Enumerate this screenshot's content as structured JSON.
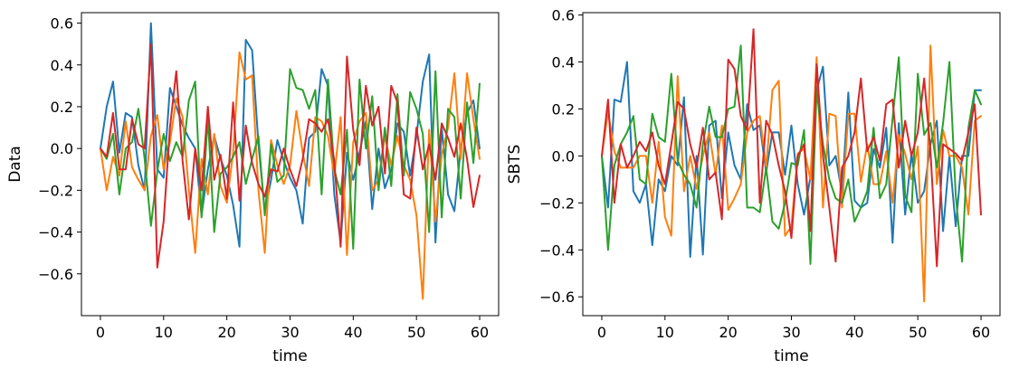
{
  "chart_data": [
    {
      "type": "line",
      "xlabel": "time",
      "ylabel": "Data",
      "xlim": [
        -3,
        63
      ],
      "ylim": [
        -0.8,
        0.65
      ],
      "xticks": [
        0,
        10,
        20,
        30,
        40,
        50,
        60
      ],
      "xtick_labels": [
        "0",
        "10",
        "20",
        "30",
        "40",
        "50",
        "60"
      ],
      "yticks": [
        -0.6,
        -0.4,
        -0.2,
        0.0,
        0.2,
        0.4,
        0.6
      ],
      "ytick_labels": [
        "−0.6",
        "−0.4",
        "−0.2",
        "0.0",
        "0.2",
        "0.4",
        "0.6"
      ],
      "grid": false,
      "x": [
        0,
        1,
        2,
        3,
        4,
        5,
        6,
        7,
        8,
        9,
        10,
        11,
        12,
        13,
        14,
        15,
        16,
        17,
        18,
        19,
        20,
        21,
        22,
        23,
        24,
        25,
        26,
        27,
        28,
        29,
        30,
        31,
        32,
        33,
        34,
        35,
        36,
        37,
        38,
        39,
        40,
        41,
        42,
        43,
        44,
        45,
        46,
        47,
        48,
        49,
        50,
        51,
        52,
        53,
        54,
        55,
        56,
        57,
        58,
        59,
        60
      ],
      "series": [
        {
          "color": "#1f77b4",
          "values": [
            0.0,
            0.2,
            0.32,
            -0.02,
            0.17,
            0.15,
            -0.08,
            -0.2,
            0.6,
            -0.1,
            -0.14,
            0.29,
            0.2,
            0.11,
            0.05,
            0.0,
            -0.32,
            -0.1,
            0.06,
            -0.05,
            -0.13,
            -0.27,
            -0.47,
            0.52,
            0.47,
            0.02,
            -0.3,
            -0.15,
            0.04,
            -0.06,
            -0.14,
            -0.2,
            -0.36,
            0.05,
            0.08,
            0.38,
            0.3,
            -0.22,
            -0.45,
            -0.02,
            -0.15,
            -0.02,
            0.13,
            -0.29,
            0.0,
            -0.19,
            -0.1,
            0.12,
            0.08,
            -0.13,
            0.06,
            0.32,
            0.45,
            -0.45,
            0.1,
            -0.22,
            -0.3,
            0.0,
            0.17,
            0.23,
            0.0
          ]
        },
        {
          "color": "#ff7f0e",
          "values": [
            0.0,
            -0.2,
            -0.04,
            -0.13,
            0.13,
            -0.09,
            -0.15,
            -0.2,
            0.06,
            0.16,
            -0.1,
            0.03,
            0.24,
            0.15,
            -0.2,
            -0.5,
            -0.05,
            -0.22,
            0.07,
            -0.18,
            -0.26,
            -0.02,
            0.46,
            0.33,
            0.35,
            -0.2,
            -0.5,
            0.04,
            -0.08,
            -0.17,
            -0.08,
            0.18,
            -0.02,
            -0.18,
            0.15,
            0.13,
            0.06,
            -0.13,
            0.15,
            -0.51,
            0.03,
            0.13,
            0.17,
            -0.2,
            -0.15,
            0.06,
            -0.08,
            0.06,
            -0.08,
            -0.15,
            -0.32,
            -0.72,
            0.09,
            -0.35,
            -0.03,
            0.1,
            0.36,
            -0.05,
            0.36,
            0.14,
            -0.05
          ]
        },
        {
          "color": "#2ca02c",
          "values": [
            0.0,
            -0.05,
            0.07,
            -0.22,
            0.0,
            0.03,
            0.19,
            -0.05,
            -0.37,
            -0.11,
            0.07,
            -0.06,
            0.03,
            -0.04,
            0.23,
            0.32,
            -0.33,
            0.15,
            -0.4,
            -0.12,
            -0.09,
            -0.04,
            0.03,
            -0.17,
            -0.05,
            0.06,
            -0.32,
            0.02,
            -0.16,
            -0.13,
            0.38,
            0.29,
            0.28,
            0.19,
            0.28,
            -0.22,
            0.33,
            -0.1,
            -0.22,
            0.09,
            -0.48,
            0.33,
            0.0,
            0.25,
            -0.2,
            0.1,
            -0.18,
            0.26,
            -0.13,
            0.27,
            0.19,
            0.07,
            -0.4,
            0.37,
            -0.33,
            0.19,
            0.15,
            -0.24,
            0.22,
            -0.07,
            0.31
          ]
        },
        {
          "color": "#d62728",
          "values": [
            0.0,
            -0.04,
            0.17,
            -0.1,
            -0.1,
            0.14,
            0.02,
            0.0,
            0.5,
            -0.57,
            -0.35,
            0.1,
            0.37,
            -0.06,
            -0.34,
            0.0,
            -0.2,
            0.2,
            -0.15,
            -0.03,
            -0.24,
            0.22,
            -0.25,
            0.11,
            -0.07,
            -0.17,
            -0.23,
            -0.1,
            -0.11,
            0.0,
            -0.1,
            -0.18,
            -0.05,
            0.14,
            0.12,
            0.08,
            0.14,
            -0.06,
            -0.47,
            0.44,
            0.09,
            -0.08,
            0.3,
            0.11,
            0.2,
            -0.12,
            0.3,
            0.22,
            -0.22,
            -0.24,
            0.1,
            -0.1,
            0.02,
            -0.15,
            0.12,
            0.05,
            -0.04,
            0.12,
            -0.05,
            -0.28,
            -0.13
          ]
        }
      ]
    },
    {
      "type": "line",
      "xlabel": "time",
      "ylabel": "SBTS",
      "xlim": [
        -3,
        63
      ],
      "ylim": [
        -0.68,
        0.61
      ],
      "xticks": [
        0,
        10,
        20,
        30,
        40,
        50,
        60
      ],
      "xtick_labels": [
        "0",
        "10",
        "20",
        "30",
        "40",
        "50",
        "60"
      ],
      "yticks": [
        -0.6,
        -0.4,
        -0.2,
        0.0,
        0.2,
        0.4,
        0.6
      ],
      "ytick_labels": [
        "−0.6",
        "−0.4",
        "−0.2",
        "0.0",
        "0.2",
        "0.4",
        "0.6"
      ],
      "grid": false,
      "x": [
        0,
        1,
        2,
        3,
        4,
        5,
        6,
        7,
        8,
        9,
        10,
        11,
        12,
        13,
        14,
        15,
        16,
        17,
        18,
        19,
        20,
        21,
        22,
        23,
        24,
        25,
        26,
        27,
        28,
        29,
        30,
        31,
        32,
        33,
        34,
        35,
        36,
        37,
        38,
        39,
        40,
        41,
        42,
        43,
        44,
        45,
        46,
        47,
        48,
        49,
        50,
        51,
        52,
        53,
        54,
        55,
        56,
        57,
        58,
        59,
        60
      ],
      "series": [
        {
          "color": "#1f77b4",
          "values": [
            0.0,
            -0.22,
            0.24,
            0.23,
            0.4,
            -0.15,
            -0.2,
            -0.12,
            -0.38,
            -0.1,
            -0.15,
            0.0,
            -0.04,
            0.25,
            -0.43,
            0.0,
            -0.42,
            0.13,
            0.15,
            -0.18,
            0.1,
            -0.04,
            -0.1,
            0.22,
            0.11,
            0.13,
            -0.07,
            0.1,
            0.1,
            -0.08,
            0.13,
            -0.12,
            -0.25,
            -0.09,
            0.28,
            0.38,
            -0.04,
            0.0,
            -0.16,
            0.27,
            -0.19,
            -0.22,
            -0.2,
            0.03,
            -0.05,
            0.12,
            -0.37,
            0.14,
            -0.25,
            0.01,
            -0.2,
            -0.15,
            0.05,
            0.15,
            -0.32,
            0.0,
            -0.3,
            0.0,
            0.0,
            0.28,
            0.28
          ]
        },
        {
          "color": "#ff7f0e",
          "values": [
            0.0,
            0.19,
            0.02,
            -0.05,
            -0.05,
            -0.05,
            0.0,
            0.0,
            -0.2,
            0.06,
            -0.26,
            -0.34,
            0.34,
            -0.15,
            0.0,
            -0.14,
            0.0,
            0.1,
            -0.08,
            0.13,
            -0.23,
            -0.18,
            -0.12,
            0.1,
            0.15,
            0.17,
            -0.05,
            0.28,
            0.32,
            -0.34,
            -0.3,
            0.01,
            0.03,
            -0.1,
            0.42,
            -0.22,
            0.18,
            0.17,
            -0.22,
            0.18,
            0.18,
            -0.11,
            0.05,
            -0.12,
            -0.12,
            0.02,
            -0.2,
            0.09,
            0.01,
            -0.1,
            0.04,
            -0.62,
            0.47,
            -0.12,
            0.11,
            0.0,
            0.0,
            -0.05,
            -0.25,
            0.15,
            0.17
          ]
        },
        {
          "color": "#2ca02c",
          "values": [
            0.0,
            -0.4,
            -0.04,
            0.05,
            0.1,
            0.17,
            -0.1,
            -0.12,
            0.18,
            0.08,
            0.06,
            0.35,
            -0.02,
            -0.08,
            -0.12,
            -0.22,
            0.05,
            0.21,
            0.08,
            0.08,
            0.2,
            0.21,
            0.47,
            -0.22,
            -0.22,
            -0.24,
            -0.05,
            -0.28,
            -0.31,
            -0.2,
            -0.03,
            -0.04,
            0.11,
            -0.46,
            0.28,
            0.05,
            -0.1,
            -0.18,
            -0.2,
            -0.1,
            -0.28,
            -0.22,
            -0.15,
            0.12,
            -0.18,
            -0.12,
            0.16,
            0.42,
            -0.17,
            -0.24,
            0.35,
            0.09,
            0.14,
            -0.05,
            0.14,
            0.4,
            -0.17,
            -0.45,
            0.12,
            0.28,
            0.22
          ]
        },
        {
          "color": "#d62728",
          "values": [
            0.0,
            0.24,
            -0.2,
            0.05,
            -0.05,
            0.0,
            0.06,
            0.02,
            0.1,
            -0.04,
            -0.12,
            0.05,
            0.23,
            0.2,
            0.05,
            -0.05,
            0.12,
            -0.1,
            -0.07,
            -0.27,
            0.41,
            0.37,
            0.17,
            0.11,
            0.54,
            -0.2,
            0.15,
            0.09,
            -0.04,
            -0.15,
            -0.35,
            0.0,
            0.05,
            -0.32,
            0.39,
            0.0,
            -0.22,
            -0.45,
            -0.05,
            0.0,
            0.1,
            0.33,
            0.02,
            0.08,
            -0.02,
            0.22,
            0.24,
            -0.05,
            0.15,
            0.0,
            0.1,
            0.33,
            0.02,
            -0.47,
            0.05,
            0.03,
            0.01,
            -0.02,
            0.1,
            0.22,
            -0.25
          ]
        }
      ]
    }
  ]
}
